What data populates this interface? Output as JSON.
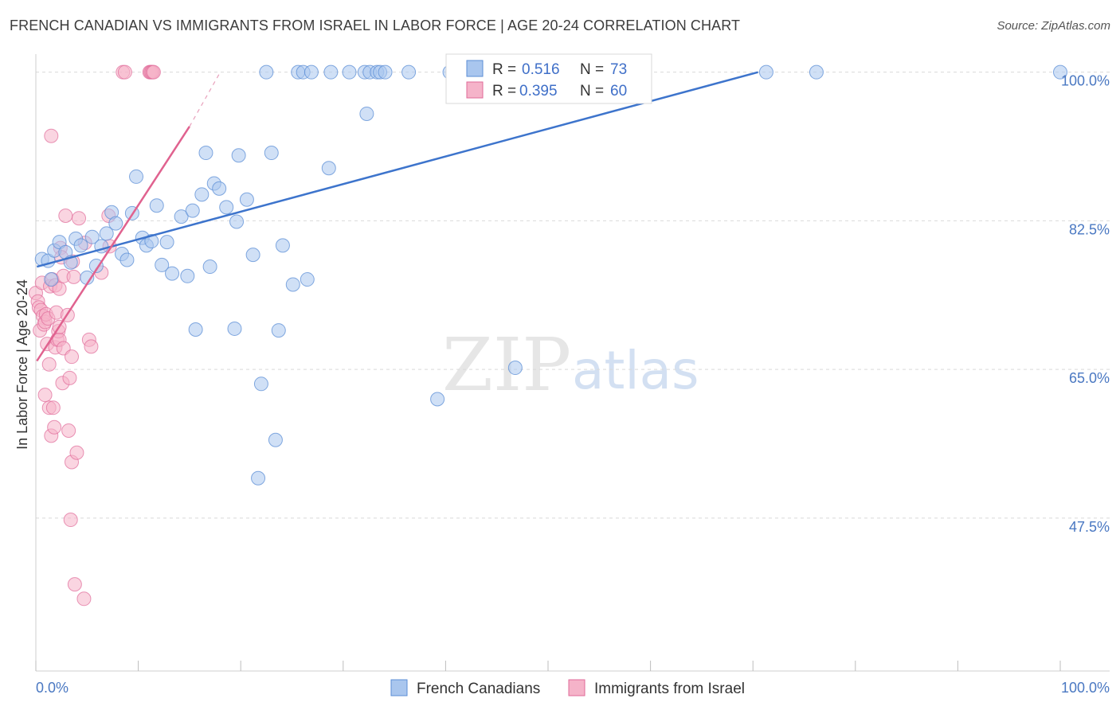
{
  "header": {
    "title": "FRENCH CANADIAN VS IMMIGRANTS FROM ISRAEL IN LABOR FORCE | AGE 20-24 CORRELATION CHART",
    "source": "Source: ZipAtlas.com"
  },
  "watermark": {
    "zip": "ZIP",
    "atlas": "atlas"
  },
  "colors": {
    "blue": "#5b8ed6",
    "blue_fill": "#a9c6ee",
    "pink": "#e06a98",
    "pink_fill": "#f5b3c9",
    "grid": "#d9d9d9",
    "tick_text": "#4a78c2"
  },
  "legend": {
    "rows": [
      {
        "r_label": "R =",
        "r_value": "0.516",
        "n_label": "N =",
        "n_value": "73",
        "series": "blue"
      },
      {
        "r_label": "R =",
        "r_value": "0.395",
        "n_label": "N =",
        "n_value": "60",
        "series": "pink"
      }
    ]
  },
  "bottom_legend": {
    "items": [
      "French Canadians",
      "Immigrants from Israel"
    ]
  },
  "chart_data": {
    "type": "scatter",
    "title": "FRENCH CANADIAN VS IMMIGRANTS FROM ISRAEL IN LABOR FORCE | AGE 20-24 CORRELATION CHART",
    "xlabel": "",
    "ylabel": "In Labor Force | Age 20-24",
    "xlim": [
      0,
      100
    ],
    "ylim": [
      29.5,
      101
    ],
    "x_tick_labels": [
      "0.0%",
      "100.0%"
    ],
    "y_ticks": [
      47.5,
      65.0,
      82.5,
      100.0
    ],
    "y_tick_labels": [
      "47.5%",
      "65.0%",
      "82.5%",
      "100.0%"
    ],
    "grid": true,
    "legend_position": "top-center",
    "series": [
      {
        "name": "French Canadians",
        "color": "#5b8ed6",
        "trend": {
          "x0": 0.1,
          "y0": 77.1,
          "x1": 70.5,
          "y1": 100.0
        },
        "points": [
          [
            0.6,
            78.0
          ],
          [
            1.2,
            77.8
          ],
          [
            1.5,
            75.6
          ],
          [
            1.8,
            79.0
          ],
          [
            2.3,
            80.0
          ],
          [
            2.9,
            78.8
          ],
          [
            3.4,
            77.6
          ],
          [
            3.9,
            80.4
          ],
          [
            4.4,
            79.6
          ],
          [
            5.0,
            75.8
          ],
          [
            5.5,
            80.6
          ],
          [
            5.9,
            77.2
          ],
          [
            6.4,
            79.5
          ],
          [
            6.9,
            81.0
          ],
          [
            7.4,
            83.5
          ],
          [
            7.8,
            82.2
          ],
          [
            8.4,
            78.6
          ],
          [
            8.9,
            77.9
          ],
          [
            9.4,
            83.4
          ],
          [
            9.8,
            87.7
          ],
          [
            10.4,
            80.5
          ],
          [
            10.8,
            79.6
          ],
          [
            11.3,
            80.1
          ],
          [
            11.8,
            84.3
          ],
          [
            12.3,
            77.3
          ],
          [
            12.8,
            80.0
          ],
          [
            13.3,
            76.3
          ],
          [
            14.2,
            83.0
          ],
          [
            14.8,
            76.0
          ],
          [
            15.3,
            83.7
          ],
          [
            15.6,
            69.7
          ],
          [
            16.2,
            85.6
          ],
          [
            16.6,
            90.5
          ],
          [
            17.0,
            77.1
          ],
          [
            17.4,
            86.9
          ],
          [
            17.9,
            86.3
          ],
          [
            18.6,
            84.1
          ],
          [
            19.4,
            69.8
          ],
          [
            19.6,
            82.4
          ],
          [
            19.8,
            90.2
          ],
          [
            20.6,
            85.0
          ],
          [
            21.2,
            78.5
          ],
          [
            21.7,
            52.2
          ],
          [
            22.0,
            63.3
          ],
          [
            22.5,
            100.0
          ],
          [
            23.0,
            90.5
          ],
          [
            23.4,
            56.7
          ],
          [
            23.7,
            69.6
          ],
          [
            24.1,
            79.6
          ],
          [
            25.1,
            75.0
          ],
          [
            25.6,
            100.0
          ],
          [
            26.1,
            100.0
          ],
          [
            26.5,
            75.6
          ],
          [
            26.9,
            100.0
          ],
          [
            28.6,
            88.7
          ],
          [
            28.8,
            100.0
          ],
          [
            30.6,
            100.0
          ],
          [
            32.1,
            100.0
          ],
          [
            32.3,
            95.1
          ],
          [
            32.6,
            100.0
          ],
          [
            33.3,
            100.0
          ],
          [
            33.6,
            100.0
          ],
          [
            34.1,
            100.0
          ],
          [
            36.4,
            100.0
          ],
          [
            39.2,
            61.5
          ],
          [
            40.4,
            100.0
          ],
          [
            42.3,
            100.0
          ],
          [
            46.8,
            65.2
          ],
          [
            50.9,
            100.0
          ],
          [
            53.8,
            100.0
          ],
          [
            71.3,
            100.0
          ],
          [
            76.2,
            100.0
          ],
          [
            100.0,
            100.0
          ]
        ]
      },
      {
        "name": "Immigrants from Israel",
        "color": "#e06a98",
        "trend": {
          "x0": 0.1,
          "y0": 66.0,
          "x1": 15.0,
          "y1": 93.6,
          "dash_x1": 18.0,
          "dash_y1": 100.0
        },
        "points": [
          [
            0.0,
            74.0
          ],
          [
            0.2,
            73.0
          ],
          [
            0.3,
            72.3
          ],
          [
            0.4,
            69.6
          ],
          [
            0.5,
            72.0
          ],
          [
            0.6,
            75.2
          ],
          [
            0.7,
            71.3
          ],
          [
            0.8,
            70.3
          ],
          [
            0.9,
            70.6
          ],
          [
            1.0,
            71.5
          ],
          [
            1.1,
            68.0
          ],
          [
            1.2,
            71.0
          ],
          [
            1.3,
            65.6
          ],
          [
            1.3,
            60.5
          ],
          [
            1.4,
            74.8
          ],
          [
            1.5,
            57.2
          ],
          [
            1.6,
            75.6
          ],
          [
            1.7,
            60.5
          ],
          [
            1.8,
            58.2
          ],
          [
            1.9,
            74.9
          ],
          [
            1.9,
            67.6
          ],
          [
            2.0,
            71.7
          ],
          [
            2.1,
            68.5
          ],
          [
            2.2,
            69.5
          ],
          [
            2.3,
            68.5
          ],
          [
            2.3,
            74.5
          ],
          [
            2.3,
            70.0
          ],
          [
            2.4,
            79.3
          ],
          [
            2.5,
            78.2
          ],
          [
            2.6,
            63.4
          ],
          [
            2.7,
            67.5
          ],
          [
            2.7,
            76.0
          ],
          [
            2.9,
            83.1
          ],
          [
            3.1,
            71.4
          ],
          [
            3.2,
            57.8
          ],
          [
            3.3,
            64.0
          ],
          [
            3.4,
            47.3
          ],
          [
            3.5,
            54.1
          ],
          [
            3.5,
            66.5
          ],
          [
            3.6,
            77.7
          ],
          [
            3.7,
            75.9
          ],
          [
            3.8,
            39.7
          ],
          [
            4.0,
            55.2
          ],
          [
            4.2,
            82.8
          ],
          [
            4.7,
            38.0
          ],
          [
            4.8,
            79.9
          ],
          [
            5.2,
            68.5
          ],
          [
            5.4,
            67.7
          ],
          [
            6.4,
            76.4
          ],
          [
            7.1,
            83.1
          ],
          [
            7.2,
            79.5
          ],
          [
            8.5,
            100.0
          ],
          [
            8.7,
            100.0
          ],
          [
            11.1,
            100.0
          ],
          [
            11.2,
            100.0
          ],
          [
            11.3,
            100.0
          ],
          [
            11.4,
            100.0
          ],
          [
            11.5,
            100.0
          ],
          [
            1.5,
            92.5
          ],
          [
            0.9,
            62.0
          ]
        ]
      }
    ]
  }
}
